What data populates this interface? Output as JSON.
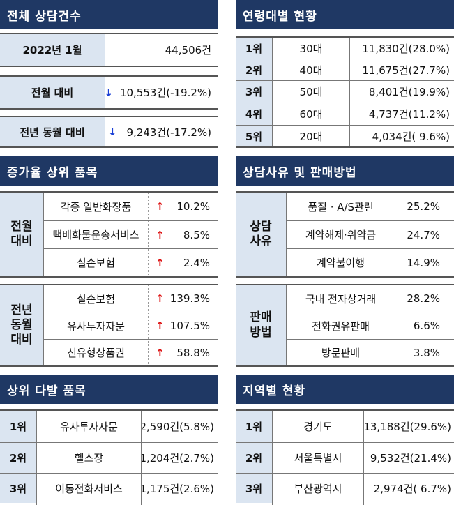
{
  "total": {
    "title": "전체 상담건수",
    "rows": [
      {
        "label": "2022년 1월",
        "value": "44,506건",
        "arrow": ""
      },
      {
        "label": "전월 대비",
        "value": "10,553건(-19.2%)",
        "arrow": "↓"
      },
      {
        "label": "전년 동월 대비",
        "value": "9,243건(-17.2%)",
        "arrow": "↓"
      }
    ]
  },
  "age": {
    "title": "연령대별 현황",
    "rows": [
      {
        "rank": "1위",
        "group": "30대",
        "value": "11,830건(28.0%)"
      },
      {
        "rank": "2위",
        "group": "40대",
        "value": "11,675건(27.7%)"
      },
      {
        "rank": "3위",
        "group": "50대",
        "value": "8,401건(19.9%)"
      },
      {
        "rank": "4위",
        "group": "60대",
        "value": "4,737건(11.2%)"
      },
      {
        "rank": "5위",
        "group": "20대",
        "value": "4,034건( 9.6%)"
      }
    ]
  },
  "growth": {
    "title": "증가율 상위 품목",
    "groups": [
      {
        "label_line1": "전월",
        "label_line2": "대비",
        "label_line3": "",
        "items": [
          {
            "name": "각종 일반화장품",
            "arrow": "↑",
            "value": "10.2%"
          },
          {
            "name": "택배화물운송서비스",
            "arrow": "↑",
            "value": "8.5%"
          },
          {
            "name": "실손보험",
            "arrow": "↑",
            "value": "2.4%"
          }
        ]
      },
      {
        "label_line1": "전년",
        "label_line2": "동월",
        "label_line3": "대비",
        "items": [
          {
            "name": "실손보험",
            "arrow": "↑",
            "value": "139.3%"
          },
          {
            "name": "유사투자자문",
            "arrow": "↑",
            "value": "107.5%"
          },
          {
            "name": "신유형상품권",
            "arrow": "↑",
            "value": "58.8%"
          }
        ]
      }
    ]
  },
  "reason": {
    "title": "상담사유 및 판매방법",
    "groups": [
      {
        "label_line1": "상담",
        "label_line2": "사유",
        "items": [
          {
            "name": "품질 · A/S관련",
            "value": "25.2%"
          },
          {
            "name": "계약해제·위약금",
            "value": "24.7%"
          },
          {
            "name": "계약불이행",
            "value": "14.9%"
          }
        ]
      },
      {
        "label_line1": "판매",
        "label_line2": "방법",
        "items": [
          {
            "name": "국내 전자상거래",
            "value": "28.2%"
          },
          {
            "name": "전화권유판매",
            "value": "6.6%"
          },
          {
            "name": "방문판매",
            "value": "3.8%"
          }
        ]
      }
    ]
  },
  "frequent": {
    "title": "상위 다발 품목",
    "rows": [
      {
        "rank": "1위",
        "name": "유사투자자문",
        "value": "2,590건(5.8%)"
      },
      {
        "rank": "2위",
        "name": "헬스장",
        "value": "1,204건(2.7%)"
      },
      {
        "rank": "3위",
        "name": "이동전화서비스",
        "value": "1,175건(2.6%)"
      }
    ]
  },
  "region": {
    "title": "지역별 현황",
    "rows": [
      {
        "rank": "1위",
        "name": "경기도",
        "value": "13,188건(29.6%)"
      },
      {
        "rank": "2위",
        "name": "서울특별시",
        "value": "9,532건(21.4%)"
      },
      {
        "rank": "3위",
        "name": "부산광역시",
        "value": "2,974건( 6.7%)"
      }
    ]
  }
}
